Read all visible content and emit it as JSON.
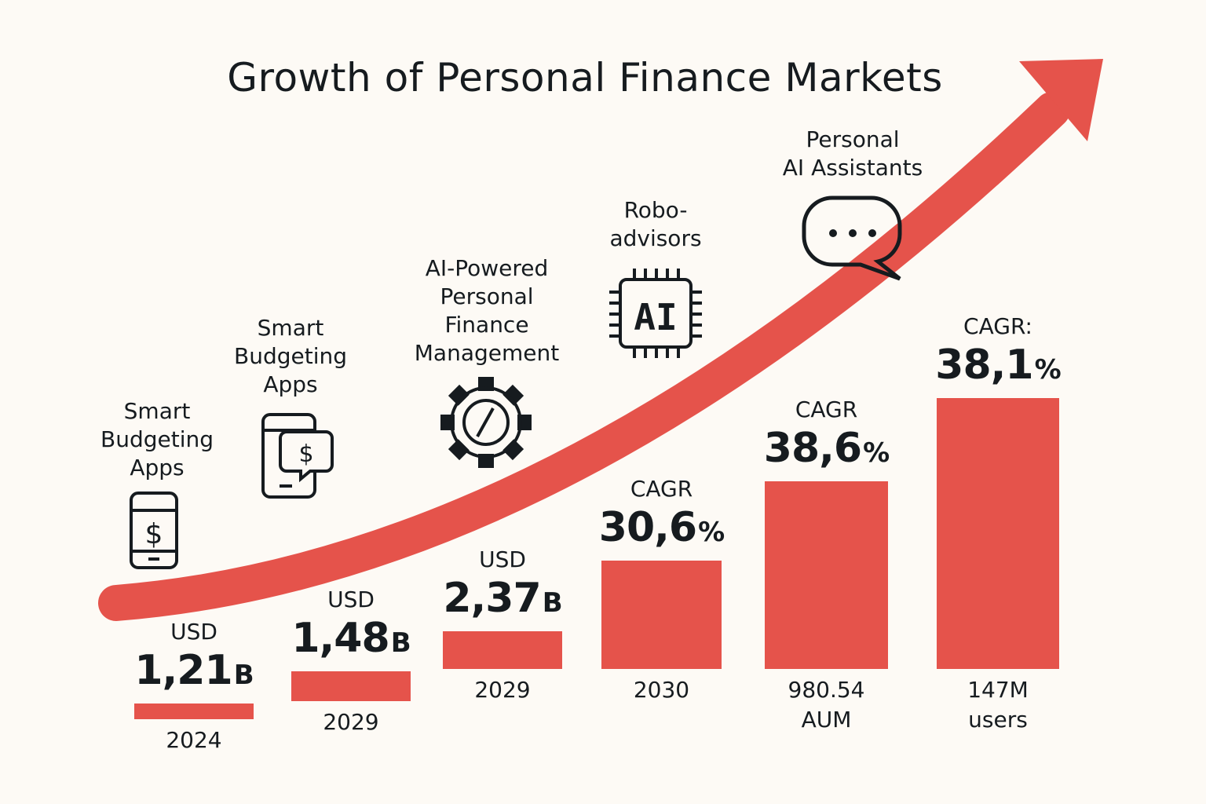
{
  "title": "Growth of Personal Finance Markets",
  "colors": {
    "accent": "#e5534b",
    "text": "#161b1f",
    "background": "#fdfaf5"
  },
  "chart_data": {
    "type": "bar",
    "title": "Growth of Personal Finance Markets",
    "categories": [
      "2024",
      "2029",
      "2029",
      "2030",
      "980.54 AUM",
      "147M users"
    ],
    "values": [
      1.21,
      1.48,
      2.37,
      30.6,
      38.6,
      38.1
    ],
    "bars": [
      {
        "category_line1": "2024",
        "category_line2": "",
        "top_label": "USD",
        "value_text": "1,21",
        "unit": "B",
        "value": 1.21
      },
      {
        "category_line1": "2029",
        "category_line2": "",
        "top_label": "USD",
        "value_text": "1,48",
        "unit": "B",
        "value": 1.48
      },
      {
        "category_line1": "2029",
        "category_line2": "",
        "top_label": "USD",
        "value_text": "2,37",
        "unit": "B",
        "value": 2.37
      },
      {
        "category_line1": "2030",
        "category_line2": "",
        "top_label": "CAGR",
        "value_text": "30,6",
        "unit": "%",
        "value": 30.6
      },
      {
        "category_line1": "980.54",
        "category_line2": "AUM",
        "top_label": "CAGR",
        "value_text": "38,6",
        "unit": "%",
        "value": 38.6
      },
      {
        "category_line1": "147M",
        "category_line2": "users",
        "top_label": "CAGR:",
        "value_text": "38,1",
        "unit": "%",
        "value": 38.1
      }
    ],
    "annotations": [
      {
        "icon": "smartphone-dollar-icon",
        "lines": [
          "Smart",
          "Budgeting",
          "Apps"
        ]
      },
      {
        "icon": "phone-chat-dollar-icon",
        "lines": [
          "Smart",
          "Budgeting",
          "Apps"
        ]
      },
      {
        "icon": "gear-icon",
        "lines": [
          "AI-Powered",
          "Personal",
          "Finance",
          "Management"
        ]
      },
      {
        "icon": "ai-chip-icon",
        "lines": [
          "Robo-",
          "advisors"
        ]
      },
      {
        "icon": "chat-bubble-icon",
        "lines": [
          "Personal",
          "AI Assistants"
        ]
      }
    ],
    "trend": "rising arrow",
    "chip_text": "AI"
  }
}
